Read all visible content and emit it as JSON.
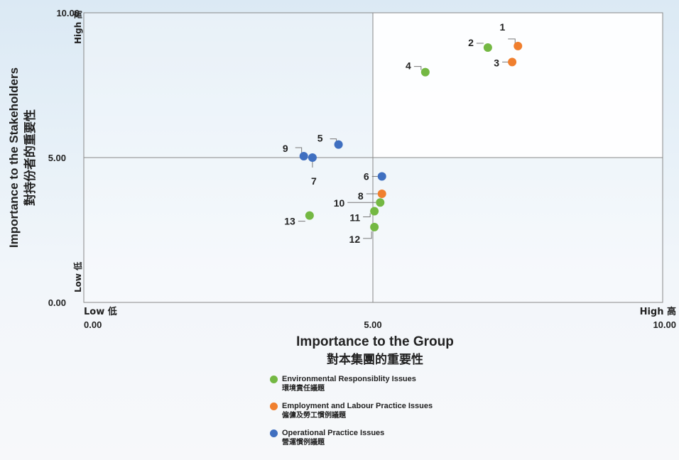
{
  "chart_data": {
    "type": "scatter",
    "xlabel": "Importance to the Group",
    "xlabel_zh": "對本集團的重要性",
    "ylabel": "Importance to the Stakeholders",
    "ylabel_zh": "對持份者的重要性",
    "xlim": [
      0,
      10
    ],
    "ylim": [
      0,
      10
    ],
    "x_ticks": [
      "0.00",
      "5.00",
      "10.00"
    ],
    "y_ticks": [
      "0.00",
      "5.00",
      "10.00"
    ],
    "x_low_label": "Low 低",
    "x_high_label": "High 高",
    "y_low_label": "Low 低",
    "y_high_label": "High 高",
    "divider_lines": [
      5,
      5
    ],
    "legend_position": "bottom-center",
    "series": [
      {
        "name": "Environmental Responsiblity Issues",
        "name_zh": "環境責任議題",
        "color": "#74b843"
      },
      {
        "name": "Employment and Labour Practice Issues",
        "name_zh": "僱傭及勞工慣例議題",
        "color": "#f07f2e"
      },
      {
        "name": "Operational Practice Issues",
        "name_zh": "營運慣例議題",
        "color": "#3f6fc0"
      }
    ],
    "points": [
      {
        "label": "1",
        "x": 7.5,
        "y": 8.85,
        "series": 1
      },
      {
        "label": "2",
        "x": 6.98,
        "y": 8.8,
        "series": 0
      },
      {
        "label": "3",
        "x": 7.4,
        "y": 8.3,
        "series": 1
      },
      {
        "label": "4",
        "x": 5.9,
        "y": 7.95,
        "series": 0
      },
      {
        "label": "5",
        "x": 4.4,
        "y": 5.45,
        "series": 2
      },
      {
        "label": "6",
        "x": 5.15,
        "y": 4.35,
        "series": 2
      },
      {
        "label": "7",
        "x": 3.95,
        "y": 5.0,
        "series": 2
      },
      {
        "label": "8",
        "x": 5.15,
        "y": 3.75,
        "series": 1
      },
      {
        "label": "9",
        "x": 3.8,
        "y": 5.05,
        "series": 2
      },
      {
        "label": "10",
        "x": 5.12,
        "y": 3.45,
        "series": 0
      },
      {
        "label": "11",
        "x": 5.02,
        "y": 3.15,
        "series": 0
      },
      {
        "label": "12",
        "x": 5.02,
        "y": 2.6,
        "series": 0
      },
      {
        "label": "13",
        "x": 3.9,
        "y": 3.0,
        "series": 0
      }
    ]
  }
}
